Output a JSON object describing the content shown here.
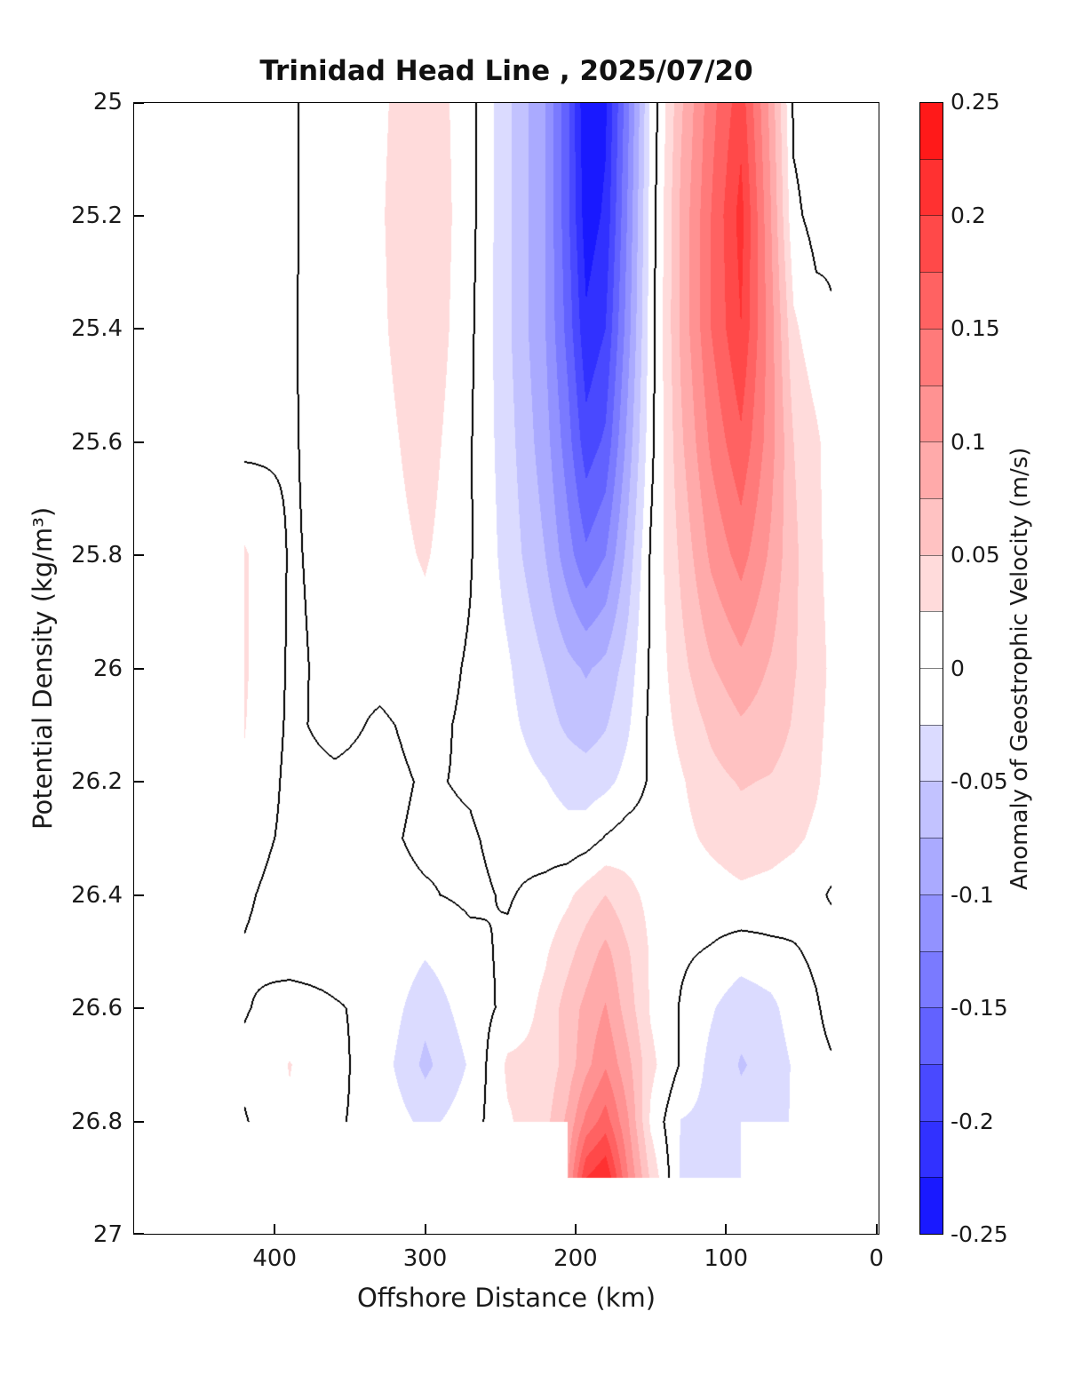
{
  "chart_data": {
    "type": "heatmap",
    "title": "Trinidad Head Line , 2025/07/20",
    "xlabel": "Offshore Distance (km)",
    "ylabel": "Potential Density (kg/m³)",
    "colorbar_label": "Anomaly of Geostrophic Velocity (m/s)",
    "x_axis_reversed": true,
    "xlim": [
      494,
      -2
    ],
    "ylim": [
      25,
      27
    ],
    "clim": [
      -0.25,
      0.25
    ],
    "level_step": 0.025,
    "contour_level": 0,
    "x_ticks": [
      400,
      300,
      200,
      100,
      0
    ],
    "y_ticks": [
      25,
      25.2,
      25.4,
      25.6,
      25.8,
      26,
      26.2,
      26.4,
      26.6,
      26.8,
      27
    ],
    "colorbar_ticks": [
      0.25,
      0.2,
      0.15,
      0.1,
      0.05,
      0,
      -0.05,
      -0.1,
      -0.15,
      -0.2,
      -0.25
    ],
    "colors": {
      "positive_extreme": "#ff2020",
      "negative_extreme": "#2020ff",
      "zero_band": "#ffffff",
      "contour": "#000000"
    },
    "x_stations_km": [
      420,
      390,
      360,
      330,
      300,
      270,
      245,
      220,
      205,
      193,
      180,
      165,
      150,
      130,
      110,
      90,
      70,
      55,
      40,
      30
    ],
    "sigma_levels": [
      25.0,
      25.2,
      25.4,
      25.6,
      25.8,
      26.0,
      26.1,
      26.2,
      26.3,
      26.4,
      26.5,
      26.6,
      26.7,
      26.8,
      26.9
    ],
    "velocity_anomaly": [
      [
        -0.01,
        -0.003,
        0.012,
        0.02,
        0.045,
        0.008,
        -0.045,
        -0.1,
        -0.17,
        -0.25,
        -0.23,
        -0.13,
        -0.02,
        0.07,
        0.14,
        0.19,
        0.09,
        -0.005,
        -0.012,
        -0.006
      ],
      [
        -0.01,
        -0.003,
        0.012,
        0.022,
        0.05,
        0.008,
        -0.045,
        -0.1,
        -0.17,
        -0.24,
        -0.22,
        -0.12,
        -0.015,
        0.08,
        0.15,
        0.21,
        0.1,
        0.005,
        -0.008,
        -0.004
      ],
      [
        -0.008,
        -0.002,
        0.01,
        0.02,
        0.048,
        0.005,
        -0.045,
        -0.1,
        -0.16,
        -0.22,
        -0.2,
        -0.11,
        -0.012,
        0.08,
        0.15,
        0.2,
        0.11,
        0.03,
        0.008,
        0.002
      ],
      [
        -0.006,
        -0.002,
        0.008,
        0.015,
        0.038,
        0.002,
        -0.04,
        -0.09,
        -0.14,
        -0.19,
        -0.17,
        -0.09,
        -0.008,
        0.07,
        0.13,
        0.17,
        0.11,
        0.05,
        0.03,
        0.012
      ],
      [
        0.028,
        -0.002,
        0.005,
        0.012,
        0.028,
        0.002,
        -0.035,
        -0.075,
        -0.115,
        -0.145,
        -0.125,
        -0.065,
        0.003,
        0.055,
        0.105,
        0.135,
        0.095,
        0.055,
        0.032,
        0.015
      ],
      [
        0.028,
        -0.003,
        0.004,
        0.006,
        0.012,
        -0.003,
        -0.022,
        -0.05,
        -0.068,
        -0.078,
        -0.068,
        -0.038,
        0.004,
        0.042,
        0.072,
        0.092,
        0.072,
        0.052,
        0.036,
        0.02
      ],
      [
        0.026,
        -0.004,
        0.006,
        -0.003,
        0.006,
        -0.004,
        -0.018,
        -0.04,
        -0.055,
        -0.062,
        -0.052,
        -0.028,
        0.006,
        0.032,
        0.055,
        0.072,
        0.062,
        0.048,
        0.032,
        0.018
      ],
      [
        0.022,
        -0.006,
        -0.004,
        -0.006,
        0.002,
        -0.002,
        -0.012,
        -0.024,
        -0.034,
        -0.038,
        -0.032,
        -0.016,
        0.004,
        0.022,
        0.042,
        0.052,
        0.048,
        0.04,
        0.028,
        0.016
      ],
      [
        0.012,
        -0.006,
        -0.012,
        -0.004,
        0.004,
        0.002,
        -0.006,
        -0.012,
        -0.016,
        -0.012,
        0.002,
        0.012,
        0.012,
        0.018,
        0.03,
        0.04,
        0.036,
        0.03,
        0.02,
        0.01
      ],
      [
        0.004,
        -0.012,
        -0.016,
        -0.006,
        -0.002,
        0.004,
        -0.002,
        0.008,
        0.02,
        0.036,
        0.05,
        0.032,
        0.018,
        0.01,
        0.014,
        0.02,
        0.016,
        0.01,
        0.004,
        -0.002
      ],
      [
        -0.002,
        -0.012,
        -0.01,
        -0.002,
        -0.022,
        -0.006,
        0.004,
        0.022,
        0.042,
        0.062,
        0.082,
        0.052,
        0.022,
        0.004,
        -0.002,
        -0.012,
        -0.006,
        -0.002,
        0.004,
        0.01
      ],
      [
        -0.002,
        0.012,
        0.002,
        -0.006,
        -0.042,
        -0.012,
        0.006,
        0.032,
        0.062,
        0.082,
        0.102,
        0.062,
        0.022,
        -0.002,
        -0.022,
        -0.042,
        -0.032,
        -0.012,
        -0.002,
        0.006
      ],
      [
        0.006,
        0.026,
        0.006,
        -0.012,
        -0.056,
        -0.022,
        0.03,
        0.032,
        0.062,
        0.092,
        0.122,
        0.082,
        0.032,
        -0.002,
        -0.032,
        -0.052,
        -0.042,
        -0.022,
        -0.006,
        -0.002
      ],
      [
        -0.002,
        0.022,
        0.002,
        -0.006,
        -0.032,
        -0.012,
        0.022,
        0.042,
        0.082,
        0.132,
        0.162,
        0.102,
        0.02,
        -0.026,
        -0.032,
        -0.042,
        -0.036,
        -0.022,
        -0.012,
        -0.002
      ],
      [
        null,
        null,
        null,
        null,
        null,
        null,
        null,
        null,
        0.1,
        0.2,
        0.225,
        0.125,
        0.045,
        -0.028,
        -0.03,
        -0.028,
        null,
        null,
        null,
        null
      ]
    ]
  }
}
